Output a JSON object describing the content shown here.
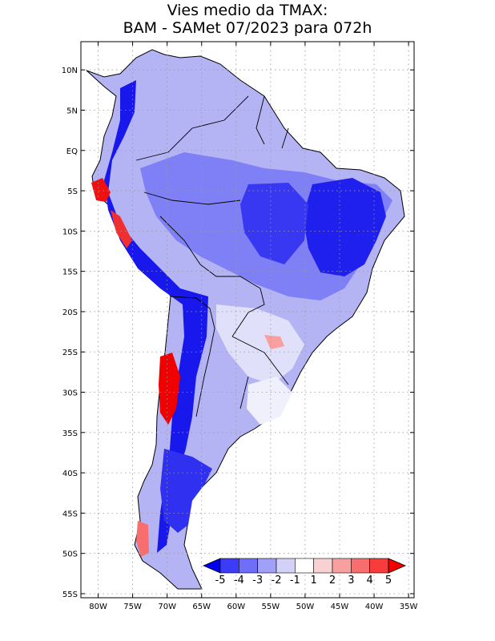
{
  "title_line1": "Vies medio da TMAX:",
  "title_line2": "BAM - SAMet 07/2023  para 072h",
  "map": {
    "lat_labels": [
      "10N",
      "5N",
      "EQ",
      "5S",
      "10S",
      "15S",
      "20S",
      "25S",
      "30S",
      "35S",
      "40S",
      "45S",
      "50S",
      "55S"
    ],
    "lon_labels": [
      "80W",
      "75W",
      "70W",
      "65W",
      "60W",
      "55W",
      "50W",
      "45W",
      "40W",
      "35W"
    ],
    "lat_values": [
      10,
      5,
      0,
      -5,
      -10,
      -15,
      -20,
      -25,
      -30,
      -35,
      -40,
      -45,
      -50,
      -55
    ],
    "lon_values": [
      -80,
      -75,
      -70,
      -65,
      -60,
      -55,
      -50,
      -45,
      -40,
      -35
    ],
    "extent": {
      "lon_min": -82.5,
      "lon_max": -34.2,
      "lat_min": -55.5,
      "lat_max": 13.5
    }
  },
  "colorbar": {
    "labels": [
      "-5",
      "-4",
      "-3",
      "-2",
      "-1",
      "1",
      "2",
      "3",
      "4",
      "5"
    ],
    "colors": [
      "#0000f0",
      "#3c3cf8",
      "#6e6ef8",
      "#a0a0f8",
      "#d2d2f8",
      "#ffffff",
      "#f8d2d2",
      "#f8a0a0",
      "#f86e6e",
      "#f83c3c",
      "#f00000"
    ]
  }
}
